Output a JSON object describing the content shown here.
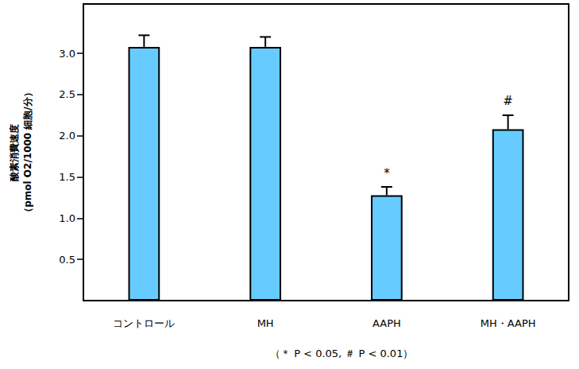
{
  "chart_data": {
    "type": "bar",
    "y_label": "酸素消費速度\n（pmol O2/1000 細胞/分）",
    "categories": [
      "コントロール",
      "MH",
      "AAPH",
      "MH・AAPH"
    ],
    "values": [
      3.08,
      3.08,
      1.28,
      2.08
    ],
    "errors": [
      0.14,
      0.12,
      0.1,
      0.17
    ],
    "color": "#66ccff",
    "ylim": [
      0,
      3.6
    ],
    "yticks": [
      0.5,
      {
        "value": 1,
        "label": "1.0"
      },
      1.5,
      {
        "value": 2,
        "label": "2.0"
      },
      2.5,
      {
        "value": 3,
        "label": "3.0"
      }
    ],
    "annotations": [
      {
        "category": "AAPH",
        "text": "*"
      },
      {
        "category": "MH・AAPH",
        "text": "#"
      }
    ],
    "note": "（＊ P < 0.05, ＃ P < 0.01）",
    "grid": false
  }
}
